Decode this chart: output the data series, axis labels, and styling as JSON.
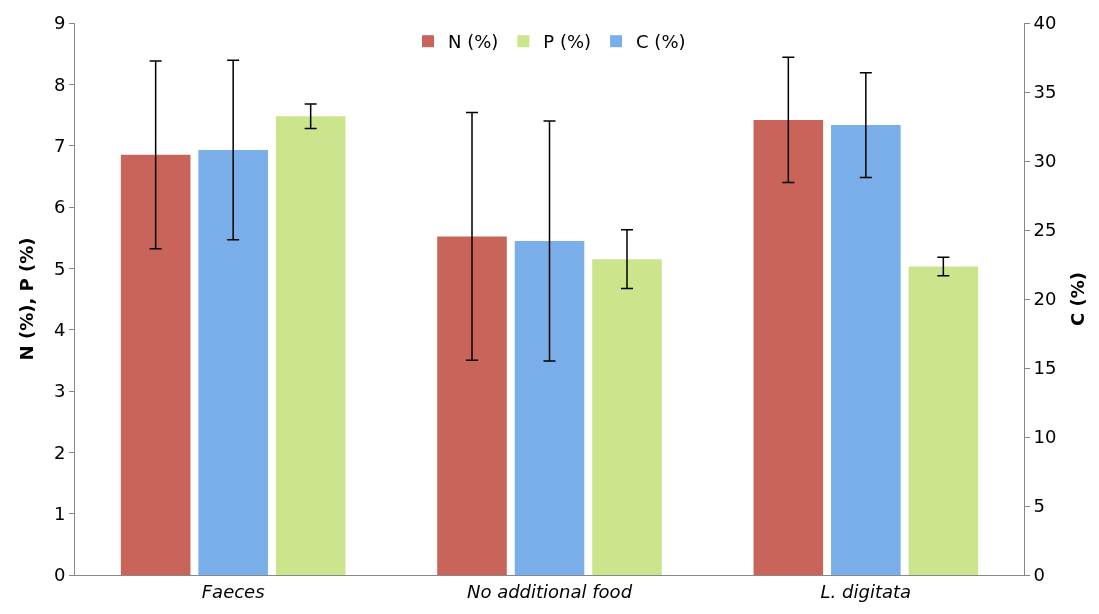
{
  "chart_data": {
    "type": "bar",
    "categories": [
      "Faeces",
      "No additional food",
      "L. digitata"
    ],
    "series": [
      {
        "name": "N (%)",
        "color": "#c8645a",
        "values": [
          6.85,
          5.52,
          7.42
        ],
        "errors": [
          1.53,
          2.02,
          1.02
        ]
      },
      {
        "name": "C (%)",
        "color": "#7aaee8",
        "axis": "y2",
        "values": [
          30.8,
          24.2,
          32.6
        ],
        "errors": [
          6.5,
          8.7,
          3.8
        ]
      },
      {
        "name": "P (%)",
        "color": "#cbe58c",
        "values": [
          7.48,
          5.15,
          5.03
        ],
        "errors": [
          0.2,
          0.48,
          0.15
        ]
      }
    ],
    "ylabel": "N (%), P (%)",
    "y2label": "C (%)",
    "ylim": [
      0,
      9
    ],
    "yticks": [
      0,
      1,
      2,
      3,
      4,
      5,
      6,
      7,
      8,
      9
    ],
    "y2lim": [
      0,
      40
    ],
    "y2ticks": [
      0,
      5,
      10,
      15,
      20,
      25,
      30,
      35,
      40
    ],
    "legend": "top"
  }
}
